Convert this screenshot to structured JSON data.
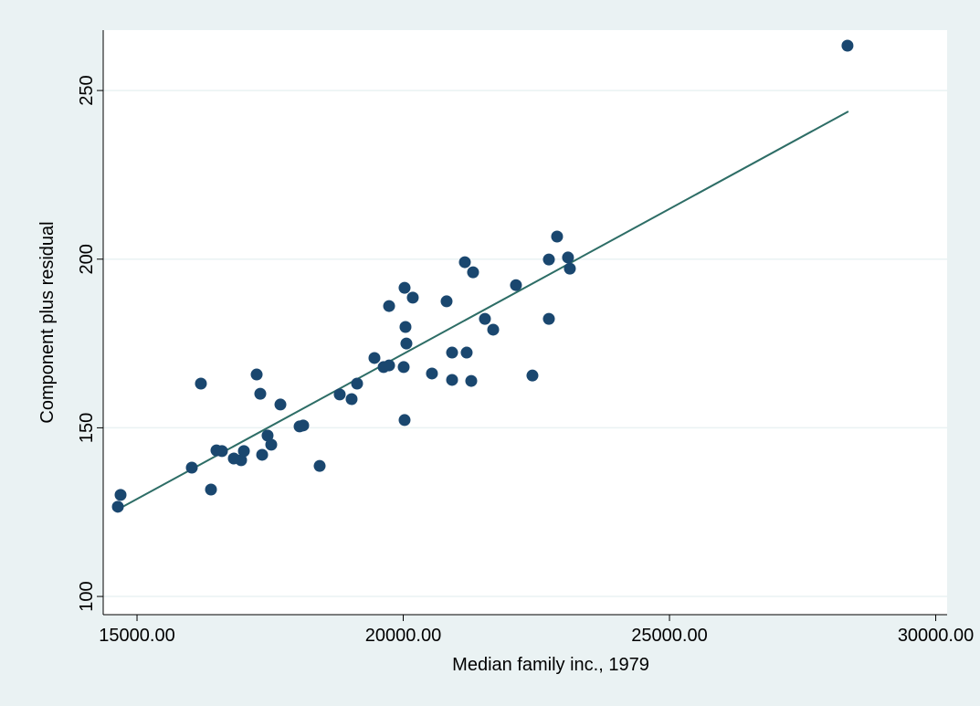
{
  "chart_data": {
    "type": "scatter",
    "xlabel": "Median family inc., 1979",
    "ylabel": "Component plus residual",
    "xlim": [
      14365,
      30214
    ],
    "ylim": [
      94.6,
      267.9
    ],
    "xticks": [
      {
        "value": 15000,
        "label": "15000.00"
      },
      {
        "value": 20000,
        "label": "20000.00"
      },
      {
        "value": 25000,
        "label": "25000.00"
      },
      {
        "value": 30000,
        "label": "30000.00"
      }
    ],
    "yticks": [
      100,
      150,
      200,
      250
    ],
    "grid": true,
    "series": [
      {
        "type": "scatter",
        "color": "#1a476f",
        "x": [
          14640,
          14691,
          16029,
          16200,
          16389,
          16492,
          16595,
          16818,
          16955,
          17007,
          17247,
          17315,
          17350,
          17452,
          17521,
          17693,
          18053,
          18121,
          18430,
          18807,
          19030,
          19133,
          19459,
          19631,
          19734,
          19734,
          20008,
          20025,
          20025,
          20042,
          20059,
          20179,
          20539,
          20814,
          20917,
          20917,
          21157,
          21191,
          21277,
          21311,
          21534,
          21689,
          22117,
          22426,
          22735,
          22735,
          22889,
          23094,
          23129,
          28343
        ],
        "values": [
          126.6,
          130.1,
          138.2,
          163.1,
          131.7,
          143.3,
          143.1,
          140.9,
          140.4,
          143.1,
          165.8,
          160.1,
          142.0,
          147.7,
          145.0,
          156.9,
          150.4,
          150.7,
          138.7,
          159.9,
          158.5,
          163.1,
          170.7,
          168.0,
          168.5,
          186.1,
          168.0,
          152.3,
          191.5,
          179.9,
          175.0,
          188.6,
          166.1,
          187.5,
          172.3,
          164.2,
          199.1,
          172.3,
          163.9,
          196.1,
          182.3,
          179.1,
          192.3,
          165.5,
          199.9,
          182.3,
          206.7,
          200.5,
          197.2,
          263.3
        ]
      },
      {
        "type": "line",
        "color": "#2d6d66",
        "x": [
          14640,
          28360
        ],
        "values": [
          125.8,
          243.8
        ]
      }
    ]
  }
}
